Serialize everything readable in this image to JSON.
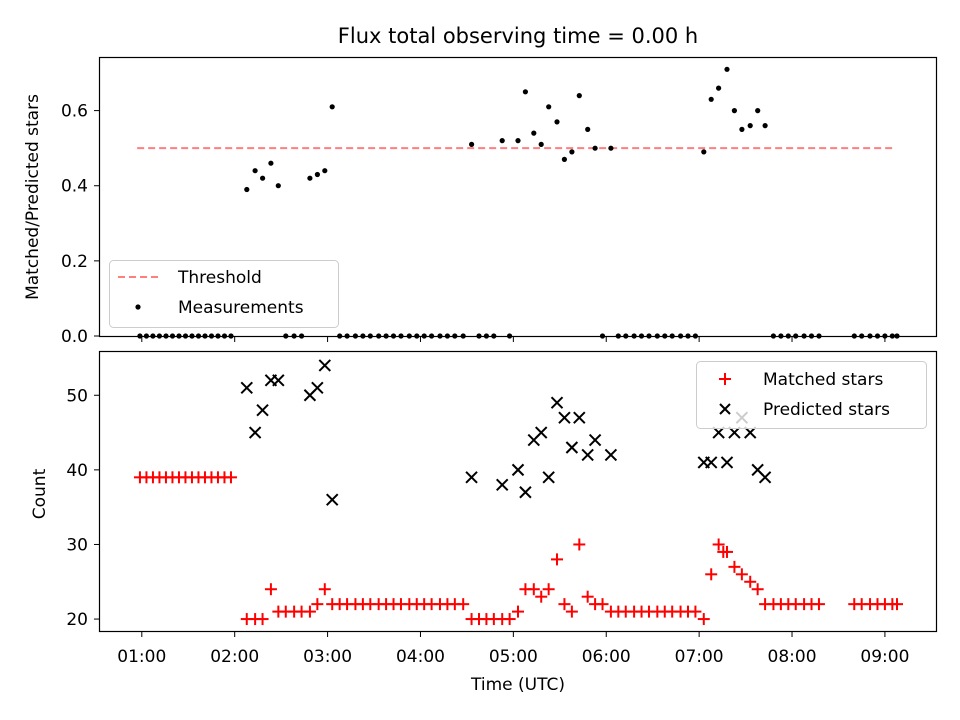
{
  "chart_data": [
    {
      "type": "scatter",
      "title": "Flux total observing time = 0.00 h",
      "ylabel": "Matched/Predicted stars",
      "xlabel": "",
      "xlim": [
        0.55,
        9.55
      ],
      "ylim": [
        0,
        0.74
      ],
      "yticks": [
        0.0,
        0.2,
        0.4,
        0.6
      ],
      "ytick_labels": [
        "0.0",
        "0.2",
        "0.4",
        "0.6"
      ],
      "legend_position": "lower-left",
      "threshold": {
        "name": "Threshold",
        "value": 0.5,
        "x_range": [
          0.95,
          9.1
        ],
        "color": "#ff7f7f"
      },
      "series": [
        {
          "name": "Measurements",
          "color": "#000000",
          "x": [
            0.98,
            1.05,
            1.12,
            1.19,
            1.26,
            1.33,
            1.4,
            1.47,
            1.54,
            1.61,
            1.68,
            1.75,
            1.82,
            1.89,
            1.96,
            2.13,
            2.22,
            2.3,
            2.39,
            2.47,
            2.55,
            2.64,
            2.72,
            2.81,
            2.89,
            2.97,
            3.05,
            3.13,
            3.21,
            3.3,
            3.38,
            3.46,
            3.55,
            3.63,
            3.71,
            3.79,
            3.88,
            3.96,
            4.04,
            4.12,
            4.21,
            4.29,
            4.37,
            4.46,
            4.55,
            4.63,
            4.71,
            4.79,
            4.88,
            4.96,
            5.05,
            5.13,
            5.22,
            5.3,
            5.38,
            5.47,
            5.55,
            5.63,
            5.71,
            5.8,
            5.88,
            5.96,
            6.05,
            6.13,
            6.21,
            6.3,
            6.38,
            6.46,
            6.55,
            6.63,
            6.71,
            6.8,
            6.88,
            6.96,
            7.05,
            7.13,
            7.21,
            7.3,
            7.38,
            7.46,
            7.55,
            7.63,
            7.71,
            7.8,
            7.88,
            7.96,
            8.04,
            8.13,
            8.21,
            8.29,
            8.67,
            8.75,
            8.84,
            8.92,
            9.0,
            9.08,
            9.13
          ],
          "y": [
            0,
            0,
            0,
            0,
            0,
            0,
            0,
            0,
            0,
            0,
            0,
            0,
            0,
            0,
            0,
            0.39,
            0.44,
            0.42,
            0.46,
            0.4,
            0,
            0,
            0,
            0.42,
            0.43,
            0.44,
            0.61,
            0,
            0,
            0,
            0,
            0,
            0,
            0,
            0,
            0,
            0,
            0,
            0,
            0,
            0,
            0,
            0,
            0,
            0.51,
            0,
            0,
            0,
            0.52,
            0,
            0.52,
            0.65,
            0.54,
            0.51,
            0.61,
            0.57,
            0.47,
            0.49,
            0.64,
            0.55,
            0.5,
            0,
            0.5,
            0,
            0,
            0,
            0,
            0,
            0,
            0,
            0,
            0,
            0,
            0,
            0.49,
            0.63,
            0.66,
            0.71,
            0.6,
            0.55,
            0.56,
            0.6,
            0.56,
            0,
            0,
            0,
            0,
            0,
            0,
            0,
            0,
            0,
            0,
            0,
            0,
            0,
            0
          ]
        }
      ]
    },
    {
      "type": "scatter",
      "title": "",
      "ylabel": "Count",
      "xlabel": "Time (UTC)",
      "xlim": [
        0.55,
        9.55
      ],
      "ylim": [
        18.4,
        55.8
      ],
      "yticks": [
        20,
        30,
        40,
        50
      ],
      "ytick_labels": [
        "20",
        "30",
        "40",
        "50"
      ],
      "xticks": [
        1,
        2,
        3,
        4,
        5,
        6,
        7,
        8,
        9
      ],
      "xtick_labels": [
        "01:00",
        "02:00",
        "03:00",
        "04:00",
        "05:00",
        "06:00",
        "07:00",
        "08:00",
        "09:00"
      ],
      "legend_position": "top-right",
      "series": [
        {
          "name": "Matched stars",
          "marker": "plus",
          "color": "#ff0000",
          "x": [
            0.98,
            1.05,
            1.12,
            1.19,
            1.26,
            1.33,
            1.4,
            1.47,
            1.54,
            1.61,
            1.68,
            1.75,
            1.82,
            1.89,
            1.96,
            2.13,
            2.22,
            2.3,
            2.39,
            2.47,
            2.55,
            2.64,
            2.72,
            2.81,
            2.89,
            2.97,
            3.05,
            3.13,
            3.21,
            3.3,
            3.38,
            3.46,
            3.55,
            3.63,
            3.71,
            3.79,
            3.88,
            3.96,
            4.04,
            4.12,
            4.21,
            4.29,
            4.37,
            4.46,
            4.55,
            4.63,
            4.71,
            4.79,
            4.88,
            4.96,
            5.05,
            5.13,
            5.22,
            5.3,
            5.38,
            5.47,
            5.55,
            5.63,
            5.71,
            5.8,
            5.88,
            5.96,
            6.05,
            6.13,
            6.21,
            6.3,
            6.38,
            6.46,
            6.55,
            6.63,
            6.71,
            6.8,
            6.88,
            6.96,
            7.05,
            7.13,
            7.21,
            7.26,
            7.3,
            7.38,
            7.46,
            7.55,
            7.63,
            7.71,
            7.8,
            7.88,
            7.96,
            8.04,
            8.13,
            8.21,
            8.29,
            8.67,
            8.75,
            8.84,
            8.92,
            9.0,
            9.08,
            9.13
          ],
          "y": [
            39,
            39,
            39,
            39,
            39,
            39,
            39,
            39,
            39,
            39,
            39,
            39,
            39,
            39,
            39,
            20,
            20,
            20,
            24,
            21,
            21,
            21,
            21,
            21,
            22,
            24,
            22,
            22,
            22,
            22,
            22,
            22,
            22,
            22,
            22,
            22,
            22,
            22,
            22,
            22,
            22,
            22,
            22,
            22,
            20,
            20,
            20,
            20,
            20,
            20,
            21,
            24,
            24,
            23,
            24,
            28,
            22,
            21,
            30,
            23,
            22,
            22,
            21,
            21,
            21,
            21,
            21,
            21,
            21,
            21,
            21,
            21,
            21,
            21,
            20,
            26,
            30,
            29,
            29,
            27,
            26,
            25,
            24,
            22,
            22,
            22,
            22,
            22,
            22,
            22,
            22,
            22,
            22,
            22,
            22,
            22,
            22,
            22
          ]
        },
        {
          "name": "Predicted stars",
          "marker": "x",
          "color": "#000000",
          "x": [
            2.13,
            2.22,
            2.3,
            2.39,
            2.47,
            2.81,
            2.89,
            2.97,
            3.05,
            4.55,
            4.88,
            5.05,
            5.13,
            5.22,
            5.3,
            5.38,
            5.47,
            5.55,
            5.63,
            5.71,
            5.8,
            5.88,
            6.05,
            7.05,
            7.13,
            7.21,
            7.3,
            7.38,
            7.46,
            7.55,
            7.63,
            7.71
          ],
          "y": [
            51,
            45,
            48,
            52,
            52,
            50,
            51,
            54,
            36,
            39,
            38,
            40,
            37,
            44,
            45,
            39,
            49,
            47,
            43,
            47,
            42,
            44,
            42,
            41,
            41,
            45,
            41,
            45,
            47,
            45,
            40,
            39
          ]
        }
      ]
    }
  ]
}
